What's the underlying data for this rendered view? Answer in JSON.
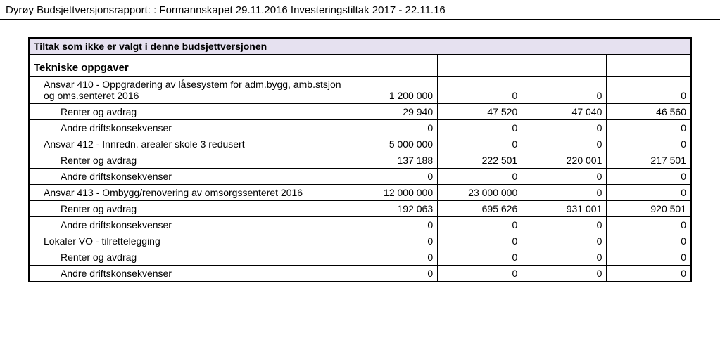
{
  "report_title": "Dyrøy Budsjettversjonsrapport: : Formannskapet 29.11.2016 Investeringstiltak 2017 - 22.11.16",
  "header_band": "Tiltak som ikke er valgt i denne budsjettversjonen",
  "section_heading": "Tekniske oppgaver",
  "colors": {
    "header_band_bg": "#e6e1f0",
    "border": "#000000",
    "text": "#000000"
  },
  "rows": [
    {
      "label": "Ansvar 410 - Oppgradering av låsesystem for adm.bygg, amb.stsjon og oms.senteret 2016",
      "indent": 1,
      "vals": [
        "1 200 000",
        "0",
        "0",
        "0"
      ]
    },
    {
      "label": "Renter og avdrag",
      "indent": 2,
      "vals": [
        "29 940",
        "47 520",
        "47 040",
        "46 560"
      ]
    },
    {
      "label": "Andre driftskonsekvenser",
      "indent": 2,
      "vals": [
        "0",
        "0",
        "0",
        "0"
      ]
    },
    {
      "label": "Ansvar 412 - Innredn. arealer skole 3 redusert",
      "indent": 1,
      "vals": [
        "5 000 000",
        "0",
        "0",
        "0"
      ]
    },
    {
      "label": "Renter og avdrag",
      "indent": 2,
      "vals": [
        "137 188",
        "222 501",
        "220 001",
        "217 501"
      ]
    },
    {
      "label": "Andre driftskonsekvenser",
      "indent": 2,
      "vals": [
        "0",
        "0",
        "0",
        "0"
      ]
    },
    {
      "label": "Ansvar 413 - Ombygg/renovering av omsorgssenteret 2016",
      "indent": 1,
      "vals": [
        "12 000 000",
        "23 000 000",
        "0",
        "0"
      ]
    },
    {
      "label": "Renter og avdrag",
      "indent": 2,
      "vals": [
        "192 063",
        "695 626",
        "931 001",
        "920 501"
      ]
    },
    {
      "label": "Andre driftskonsekvenser",
      "indent": 2,
      "vals": [
        "0",
        "0",
        "0",
        "0"
      ]
    },
    {
      "label": "Lokaler VO  - tilrettelegging",
      "indent": 1,
      "vals": [
        "0",
        "0",
        "0",
        "0"
      ]
    },
    {
      "label": "Renter og avdrag",
      "indent": 2,
      "vals": [
        "0",
        "0",
        "0",
        "0"
      ]
    },
    {
      "label": "Andre driftskonsekvenser",
      "indent": 2,
      "vals": [
        "0",
        "0",
        "0",
        "0"
      ]
    }
  ]
}
